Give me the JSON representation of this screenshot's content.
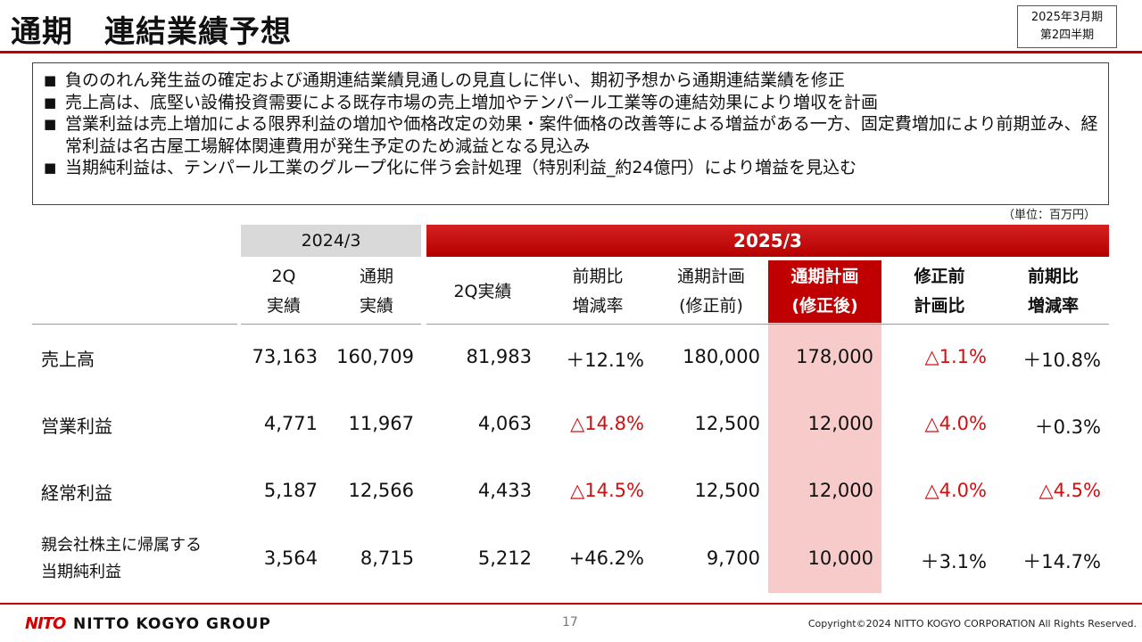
{
  "header": {
    "title": "通期　連結業績予想",
    "period_line1": "2025年3月期",
    "period_line2": "第2四半期"
  },
  "summary": [
    "負ののれん発生益の確定および通期連結業績見通しの見直しに伴い、期初予想から通期連結業績を修正",
    "売上高は、底堅い設備投資需要による既存市場の売上増加やテンパール工業等の連結効果により増収を計画",
    "営業利益は売上増加による限界利益の増加や価格改定の効果・案件価格の改善等による増益がある一方、固定費増加により前期並み、経常利益は名古屋工場解体関連費用が発生予定のため減益となる見込み",
    "当期純利益は、テンパール工業のグループ化に伴う会計処理（特別利益_約24億円）により増益を見込む"
  ],
  "bullet_mark": "■",
  "unit": "（単位：百万円）",
  "table": {
    "group_prev": "2024/3",
    "group_cur": "2025/3",
    "columns": [
      {
        "l1": "2Q",
        "l2": "実績"
      },
      {
        "l1": "通期",
        "l2": "実績"
      },
      {
        "l1": "2Q実績",
        "l2": ""
      },
      {
        "l1": "前期比",
        "l2": "増減率"
      },
      {
        "l1": "通期計画",
        "l2": "(修正前)"
      },
      {
        "l1": "通期計画",
        "l2": "(修正後)"
      },
      {
        "l1": "修正前",
        "l2": "計画比"
      },
      {
        "l1": "前期比",
        "l2": "増減率"
      }
    ],
    "rows": [
      {
        "label1": "売上高",
        "label2": "",
        "values": [
          "73,163",
          "160,709",
          "81,983",
          "＋12.1%",
          "180,000",
          "178,000",
          "△1.1%",
          "＋10.8%"
        ]
      },
      {
        "label1": "営業利益",
        "label2": "",
        "values": [
          "4,771",
          "11,967",
          "4,063",
          "△14.8%",
          "12,500",
          "12,000",
          "△4.0%",
          "＋0.3%"
        ]
      },
      {
        "label1": "経常利益",
        "label2": "",
        "values": [
          "5,187",
          "12,566",
          "4,433",
          "△14.5%",
          "12,500",
          "12,000",
          "△4.0%",
          "△4.5%"
        ]
      },
      {
        "label1": "親会社株主に帰属する",
        "label2": "当期純利益",
        "values": [
          "3,564",
          "8,715",
          "5,212",
          "+46.2%",
          "9,700",
          "10,000",
          "＋3.1%",
          "＋14.7%"
        ]
      }
    ]
  },
  "footer": {
    "logo_mark": "NITO",
    "logo_text": "NITTO KOGYO GROUP",
    "page": "17",
    "copyright": "Copyright©2024 NITTO KOGYO CORPORATION All Rights Reserved."
  },
  "colors": {
    "accent": "#c00000",
    "negative": "#d01010",
    "highlight": "#f8cbcb"
  }
}
